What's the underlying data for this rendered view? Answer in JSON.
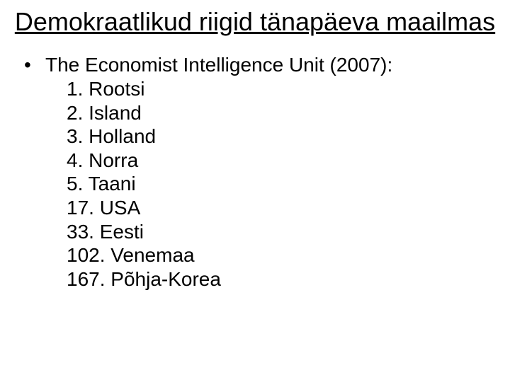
{
  "title": "Demokraatlikud riigid tänapäeva maailmas",
  "bullet_char": "•",
  "lead": "The Economist Intelligence Unit (2007):",
  "items": [
    "1. Rootsi",
    "2. Island",
    "3. Holland",
    "4. Norra",
    "5. Taani",
    "17. USA",
    "33. Eesti",
    "102. Venemaa",
    "167. Põhja-Korea"
  ],
  "colors": {
    "background": "#ffffff",
    "text": "#000000"
  },
  "fonts": {
    "title_size_pt": 36,
    "body_size_pt": 28,
    "family": "Arial"
  }
}
